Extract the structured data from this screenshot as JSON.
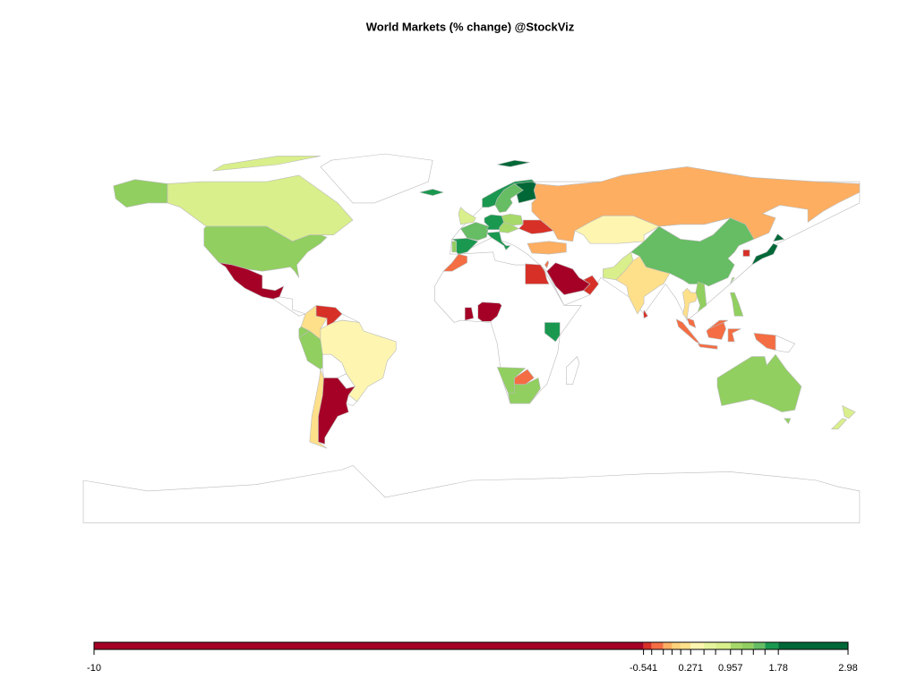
{
  "chart_data": {
    "type": "choropleth",
    "title": "World Markets (% change) @StockViz",
    "region_colors": [
      "#ffffff",
      "#a50026",
      "#d73027",
      "#f46d43",
      "#fdae61",
      "#fee08b",
      "#fef6b0",
      "#d9ef8b",
      "#a6d96a",
      "#91cf60",
      "#66bd63",
      "#1a9850",
      "#006837"
    ],
    "border_color": "#bbbbbb",
    "colorbar": {
      "xlim": [
        -10,
        2.98
      ],
      "breaks": [
        -10,
        -0.541,
        -0.4,
        -0.2,
        -0.05,
        0.1,
        0.271,
        0.5,
        0.7,
        0.957,
        1.15,
        1.35,
        1.55,
        1.78,
        2.98
      ],
      "colors": [
        "#a50026",
        "#d73027",
        "#f46d43",
        "#fdae61",
        "#fed27b",
        "#fee08b",
        "#fef6b0",
        "#e6f59d",
        "#d9ef8b",
        "#a6d96a",
        "#91cf60",
        "#66bd63",
        "#1a9850",
        "#006837"
      ],
      "xticks": [
        -10,
        -0.541,
        0.271,
        0.957,
        1.78,
        2.98
      ]
    }
  }
}
